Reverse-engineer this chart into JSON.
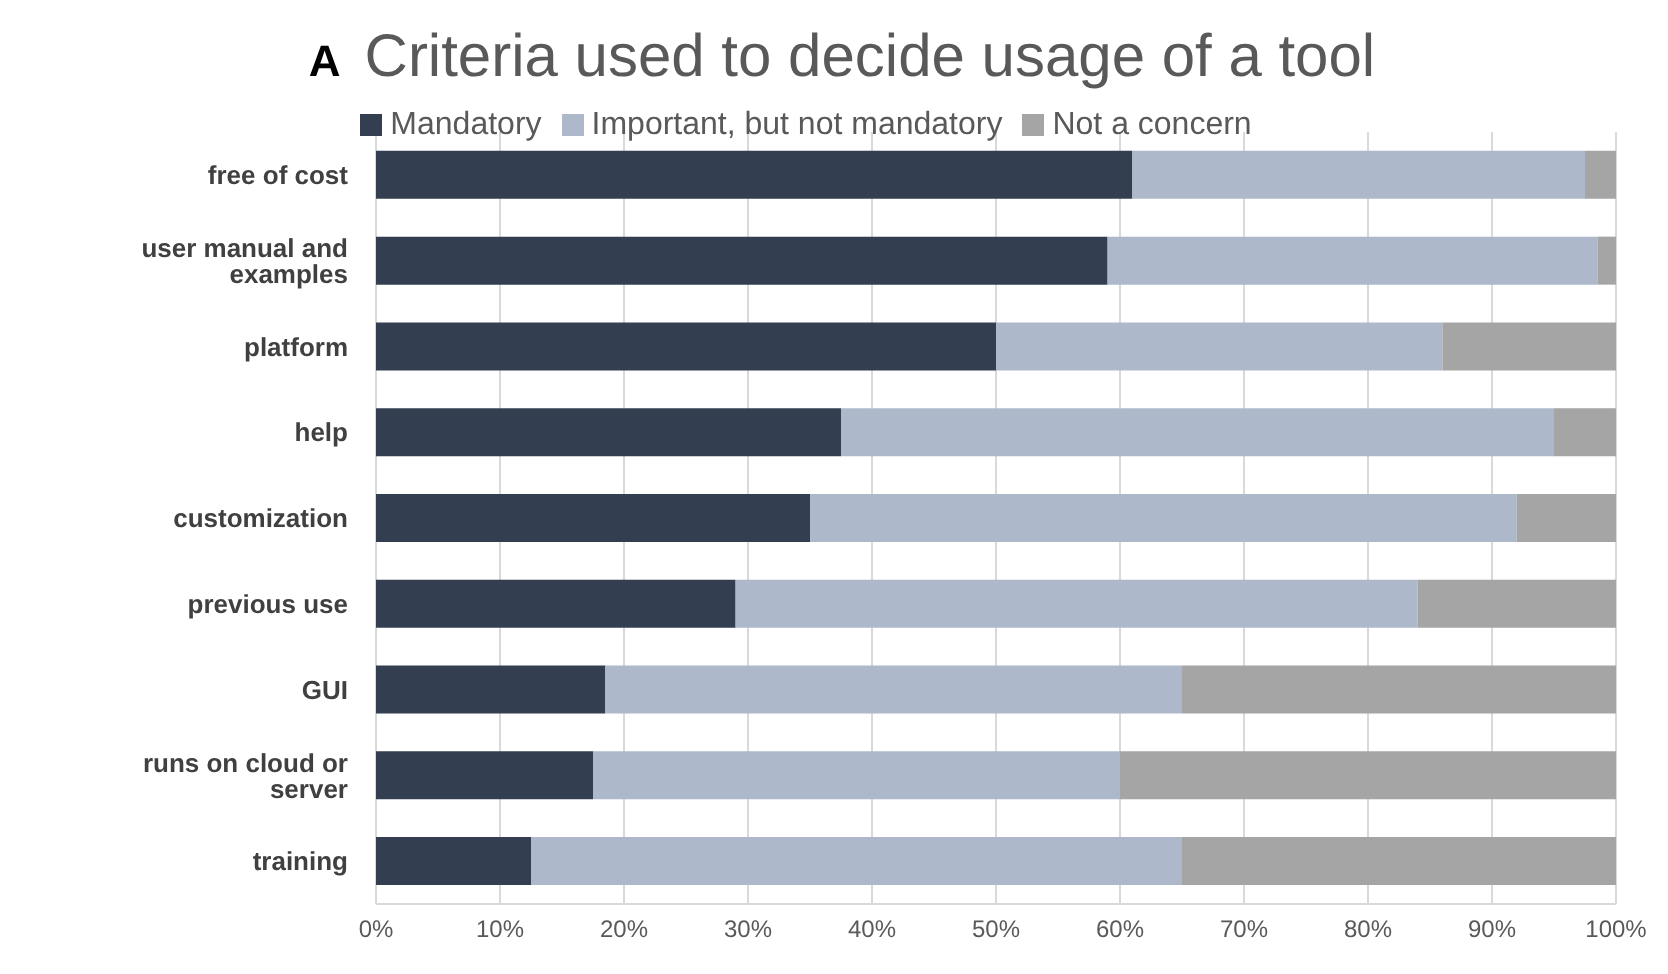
{
  "chart_data": {
    "type": "bar",
    "orientation": "horizontal",
    "stacked": true,
    "title": "Criteria used to decide usage of a tool",
    "annotations": [
      "A"
    ],
    "categories": [
      "free of cost",
      "user manual and examples",
      "platform",
      "help",
      "customization",
      "previous use",
      "GUI",
      "runs on cloud or server",
      "training"
    ],
    "series": [
      {
        "name": "Mandatory",
        "color": "#333f50",
        "values": [
          61,
          59,
          50,
          37.5,
          35,
          29,
          18.5,
          17.5,
          12.5
        ]
      },
      {
        "name": "Important, but not mandatory",
        "color": "#adb9ca",
        "values": [
          36.5,
          39.5,
          36,
          57.5,
          57,
          55,
          46.5,
          42.5,
          52.5
        ]
      },
      {
        "name": "Not a concern",
        "color": "#a5a5a5",
        "values": [
          2.5,
          1.5,
          14,
          5,
          8,
          16,
          35,
          40,
          35
        ]
      }
    ],
    "xlim": [
      0,
      100
    ],
    "xticks": [
      {
        "value": 0,
        "label": "0%"
      },
      {
        "value": 10,
        "label": "10%"
      },
      {
        "value": 20,
        "label": "20%"
      },
      {
        "value": 30,
        "label": "30%"
      },
      {
        "value": 40,
        "label": "40%"
      },
      {
        "value": 50,
        "label": "50%"
      },
      {
        "value": 60,
        "label": "60%"
      },
      {
        "value": 70,
        "label": "70%"
      },
      {
        "value": 80,
        "label": "80%"
      },
      {
        "value": 90,
        "label": "90%"
      },
      {
        "value": 100,
        "label": "100%"
      }
    ],
    "grid": "x",
    "legend": "top"
  }
}
